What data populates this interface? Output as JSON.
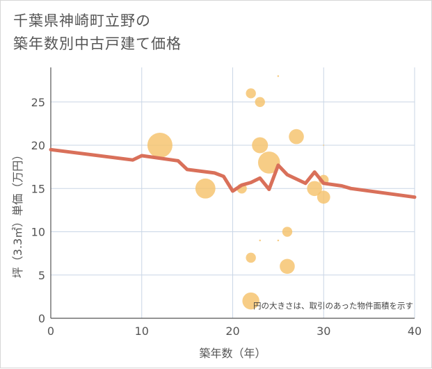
{
  "title_lines": [
    "千葉県神崎町立野の",
    "築年数別中古戸建て価格"
  ],
  "chart_data": {
    "type": "scatter",
    "title": "千葉県神崎町立野の築年数別中古戸建て価格",
    "xlabel": "築年数（年）",
    "ylabel": "坪（3.3㎡）単価（万円）",
    "xlim": [
      0,
      40
    ],
    "ylim": [
      0,
      29
    ],
    "xticks": [
      0,
      10,
      20,
      30,
      40
    ],
    "yticks": [
      0,
      5,
      10,
      15,
      20,
      25
    ],
    "grid": true,
    "note": "円の大きさは、取引のあった物件面積を示す",
    "colors": {
      "bubble": "#f5c26b",
      "line": "#d9705a",
      "grid": "#c9d6e6"
    },
    "bubbles": [
      {
        "x": 12,
        "y": 20,
        "size": 5
      },
      {
        "x": 17,
        "y": 15,
        "size": 4
      },
      {
        "x": 21,
        "y": 15,
        "size": 2
      },
      {
        "x": 22,
        "y": 26,
        "size": 2
      },
      {
        "x": 23,
        "y": 25,
        "size": 2
      },
      {
        "x": 23,
        "y": 20,
        "size": 3.2
      },
      {
        "x": 24,
        "y": 18,
        "size": 4.4
      },
      {
        "x": 22,
        "y": 7,
        "size": 2
      },
      {
        "x": 22,
        "y": 2,
        "size": 3.4
      },
      {
        "x": 25,
        "y": 28,
        "size": 0.35
      },
      {
        "x": 23,
        "y": 9,
        "size": 0.35
      },
      {
        "x": 25,
        "y": 9,
        "size": 0.35
      },
      {
        "x": 26,
        "y": 10,
        "size": 2
      },
      {
        "x": 26,
        "y": 6,
        "size": 3
      },
      {
        "x": 27,
        "y": 21,
        "size": 3
      },
      {
        "x": 29,
        "y": 15,
        "size": 3
      },
      {
        "x": 30,
        "y": 16,
        "size": 2
      },
      {
        "x": 30,
        "y": 14,
        "size": 2.6
      },
      {
        "x": 30,
        "y": 20,
        "size": 0.25
      }
    ],
    "trend_line": {
      "x": [
        0,
        9,
        10,
        14,
        15,
        18,
        19,
        20,
        21,
        22,
        23,
        24,
        25,
        26,
        28,
        29,
        30,
        32,
        33,
        40
      ],
      "y": [
        19.5,
        18.3,
        18.8,
        18.2,
        17.2,
        16.8,
        16.4,
        14.7,
        15.4,
        15.7,
        16.2,
        14.9,
        17.7,
        16.6,
        15.6,
        16.9,
        15.6,
        15.3,
        15,
        14
      ]
    }
  }
}
